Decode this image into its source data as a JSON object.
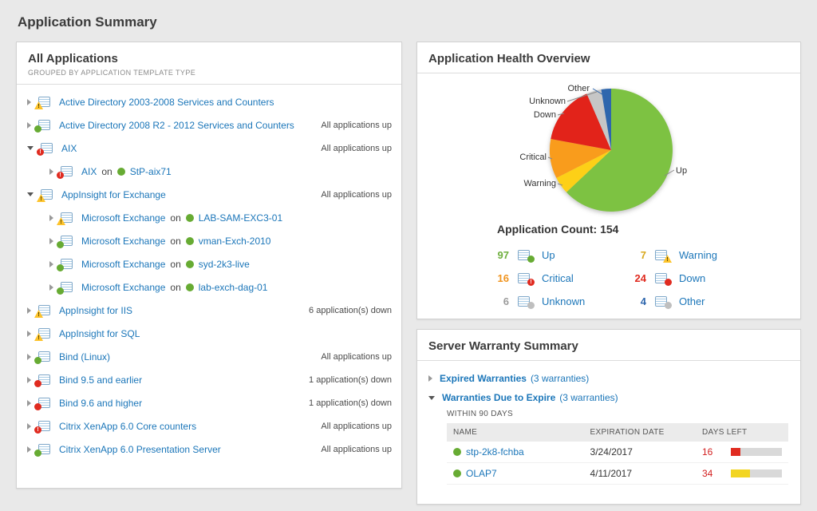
{
  "page": {
    "title": "Application Summary"
  },
  "colors": {
    "up": "#67ab33",
    "warning": "#fdc32b",
    "critical": "#f99c1c",
    "down": "#e02b20",
    "unknown": "#c6c6c6",
    "other": "#2e66ad",
    "link": "#1b76b9"
  },
  "all_applications": {
    "title": "All Applications",
    "subtitle": "GROUPED BY APPLICATION TEMPLATE TYPE",
    "items": [
      {
        "indent": 0,
        "expanded": false,
        "badge": "warning",
        "label": "Active Directory 2003-2008 Services and Counters",
        "on": null,
        "node": null,
        "node_status": null,
        "right": null
      },
      {
        "indent": 0,
        "expanded": false,
        "badge": "up",
        "label": "Active Directory 2008 R2 - 2012 Services and Counters",
        "on": null,
        "node": null,
        "node_status": null,
        "right": "All applications up"
      },
      {
        "indent": 0,
        "expanded": true,
        "badge": "critical",
        "label": "AIX",
        "on": null,
        "node": null,
        "node_status": null,
        "right": "All applications up"
      },
      {
        "indent": 1,
        "expanded": false,
        "badge": "critical",
        "label": "AIX",
        "on": "on",
        "node": "StP-aix71",
        "node_status": "up",
        "right": null
      },
      {
        "indent": 0,
        "expanded": true,
        "badge": "warning",
        "label": "AppInsight for Exchange",
        "on": null,
        "node": null,
        "node_status": null,
        "right": "All applications up"
      },
      {
        "indent": 1,
        "expanded": false,
        "badge": "warning",
        "label": "Microsoft Exchange",
        "on": "on",
        "node": "LAB-SAM-EXC3-01",
        "node_status": "up",
        "right": null
      },
      {
        "indent": 1,
        "expanded": false,
        "badge": "up",
        "label": "Microsoft Exchange",
        "on": "on",
        "node": "vman-Exch-2010",
        "node_status": "up",
        "right": null
      },
      {
        "indent": 1,
        "expanded": false,
        "badge": "up",
        "label": "Microsoft Exchange",
        "on": "on",
        "node": "syd-2k3-live",
        "node_status": "up",
        "right": null
      },
      {
        "indent": 1,
        "expanded": false,
        "badge": "up",
        "label": "Microsoft Exchange",
        "on": "on",
        "node": "lab-exch-dag-01",
        "node_status": "up",
        "right": null
      },
      {
        "indent": 0,
        "expanded": false,
        "badge": "warning",
        "label": "AppInsight for IIS",
        "on": null,
        "node": null,
        "node_status": null,
        "right": "6 application(s) down"
      },
      {
        "indent": 0,
        "expanded": false,
        "badge": "warning",
        "label": "AppInsight for SQL",
        "on": null,
        "node": null,
        "node_status": null,
        "right": null
      },
      {
        "indent": 0,
        "expanded": false,
        "badge": "up",
        "label": "Bind (Linux)",
        "on": null,
        "node": null,
        "node_status": null,
        "right": "All applications up"
      },
      {
        "indent": 0,
        "expanded": false,
        "badge": "down",
        "label": "Bind 9.5 and earlier",
        "on": null,
        "node": null,
        "node_status": null,
        "right": "1 application(s) down"
      },
      {
        "indent": 0,
        "expanded": false,
        "badge": "down",
        "label": "Bind 9.6 and higher",
        "on": null,
        "node": null,
        "node_status": null,
        "right": "1 application(s) down"
      },
      {
        "indent": 0,
        "expanded": false,
        "badge": "critical",
        "label": "Citrix XenApp 6.0 Core counters",
        "on": null,
        "node": null,
        "node_status": null,
        "right": "All applications up"
      },
      {
        "indent": 0,
        "expanded": false,
        "badge": "up",
        "label": "Citrix XenApp 6.0 Presentation Server",
        "on": null,
        "node": null,
        "node_status": null,
        "right": "All applications up"
      }
    ]
  },
  "health": {
    "title": "Application Health Overview",
    "count_label": "Application Count: 154",
    "application_count": 154,
    "callouts": [
      "Other",
      "Unknown",
      "Down",
      "Critical",
      "Warning",
      "Up"
    ],
    "chart_data": {
      "type": "pie",
      "title": "Application Health Overview",
      "labels": [
        "Up",
        "Warning",
        "Critical",
        "Down",
        "Unknown",
        "Other"
      ],
      "values": [
        97,
        7,
        16,
        24,
        6,
        4
      ],
      "colors": [
        "#7dc242",
        "#fdd017",
        "#f99c1c",
        "#e2231a",
        "#c6c6c6",
        "#2e66ad"
      ],
      "total": 154,
      "start_angle_deg": 0,
      "direction": "clockwise",
      "legend_position": "bottom"
    },
    "legend": [
      {
        "count": "97",
        "status": "up",
        "label": "Up",
        "count_color": "#6faf3e"
      },
      {
        "count": "7",
        "status": "warning",
        "label": "Warning",
        "count_color": "#d8a81d"
      },
      {
        "count": "16",
        "status": "critical",
        "label": "Critical",
        "count_color": "#f0941f"
      },
      {
        "count": "24",
        "status": "down",
        "label": "Down",
        "count_color": "#e02b20"
      },
      {
        "count": "6",
        "status": "unknown",
        "label": "Unknown",
        "count_color": "#9b9b9b"
      },
      {
        "count": "4",
        "status": "other",
        "label": "Other",
        "count_color": "#2e66ad"
      }
    ]
  },
  "warranty": {
    "title": "Server Warranty Summary",
    "expired": {
      "label": "Expired Warranties",
      "suffix": "(3 warranties)",
      "expanded": false
    },
    "due": {
      "label": "Warranties Due to Expire",
      "suffix": "(3 warranties)",
      "expanded": true
    },
    "within": "WITHIN 90 DAYS",
    "table": {
      "headers": [
        "NAME",
        "EXPIRATION DATE",
        "DAYS LEFT"
      ],
      "rows": [
        {
          "name": "stp-2k8-fchba",
          "status": "up",
          "expiration": "3/24/2017",
          "days_left": "16",
          "bar_color": "#e02b20",
          "bar_pct": 18
        },
        {
          "name": "OLAP7",
          "status": "up",
          "expiration": "4/11/2017",
          "days_left": "34",
          "bar_color": "#f2d522",
          "bar_pct": 38
        }
      ]
    }
  }
}
